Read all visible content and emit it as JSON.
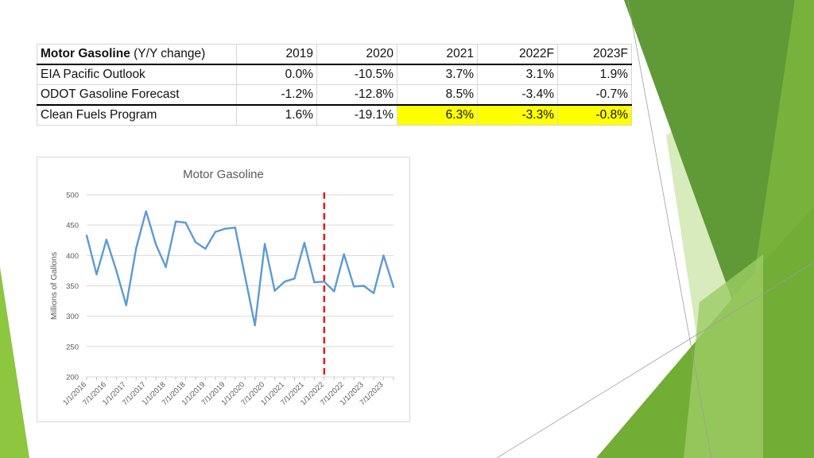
{
  "table": {
    "header": {
      "label_bold": "Motor Gasoline",
      "label_rest": " (Y/Y change)",
      "years": [
        "2019",
        "2020",
        "2021",
        "2022F",
        "2023F"
      ]
    },
    "rows": [
      {
        "label": "EIA Pacific Outlook",
        "values": [
          "0.0%",
          "-10.5%",
          "3.7%",
          "3.1%",
          "1.9%"
        ]
      },
      {
        "label": "ODOT Gasoline Forecast",
        "values": [
          "-1.2%",
          "-12.8%",
          "8.5%",
          "-3.4%",
          "-0.7%"
        ]
      },
      {
        "label": "Clean Fuels Program",
        "values": [
          "1.6%",
          "-19.1%",
          "6.3%",
          "-3.3%",
          "-0.8%"
        ]
      }
    ],
    "highlight_color": "#ffff00"
  },
  "colors": {
    "line": "#5b9bd5",
    "marker_line": "#e31a1c",
    "grid": "#d9d9d9",
    "green_dark": "#5b8f2e",
    "green_mid": "#7cb342",
    "green_light": "#c5e1a5"
  },
  "chart_data": {
    "type": "line",
    "title": "Motor Gasoline",
    "xlabel": "",
    "ylabel": "Millions of Gallons",
    "ylim": [
      200,
      500
    ],
    "yticks": [
      200,
      250,
      300,
      350,
      400,
      450,
      500
    ],
    "grid": true,
    "x": [
      "1/1/2016",
      "4/1/2016",
      "7/1/2016",
      "10/1/2016",
      "1/1/2017",
      "4/1/2017",
      "7/1/2017",
      "10/1/2017",
      "1/1/2018",
      "4/1/2018",
      "7/1/2018",
      "10/1/2018",
      "1/1/2019",
      "4/1/2019",
      "7/1/2019",
      "10/1/2019",
      "1/1/2020",
      "4/1/2020",
      "7/1/2020",
      "10/1/2020",
      "1/1/2021",
      "4/1/2021",
      "7/1/2021",
      "10/1/2021",
      "1/1/2022",
      "4/1/2022",
      "7/1/2022",
      "10/1/2022",
      "1/1/2023",
      "4/1/2023",
      "7/1/2023",
      "10/1/2023"
    ],
    "xtick_labels": [
      "1/1/2016",
      "7/1/2016",
      "1/1/2017",
      "7/1/2017",
      "1/1/2018",
      "7/1/2018",
      "1/1/2019",
      "7/1/2019",
      "1/1/2020",
      "7/1/2020",
      "1/1/2021",
      "7/1/2021",
      "1/1/2022",
      "7/1/2022",
      "1/1/2023",
      "7/1/2023"
    ],
    "series": [
      {
        "values": [
          433,
          369,
          426,
          375,
          318,
          412,
          473,
          418,
          381,
          456,
          454,
          422,
          411,
          439,
          444,
          446,
          366,
          285,
          419,
          342,
          357,
          362,
          421,
          356,
          357,
          341,
          402,
          349,
          350,
          338,
          400,
          348
        ]
      }
    ],
    "forecast_marker_x": "1/1/2022"
  }
}
